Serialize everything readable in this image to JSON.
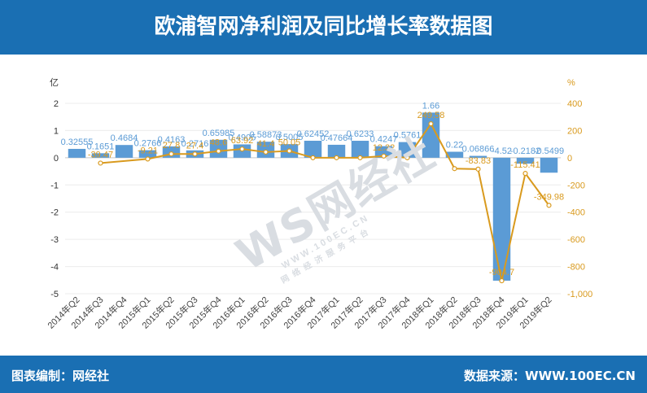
{
  "header": {
    "title": "欧浦智网净利润及同比增长率数据图"
  },
  "footer": {
    "left_text": "图表编制：网经社",
    "right_text": "数据来源：WWW.100EC.CN"
  },
  "watermark": {
    "logo_text": "WS网经社",
    "url_text": "WWW.100EC.CN",
    "tagline": "网络经济服务平台"
  },
  "colors": {
    "header_bg": "#1a6fb3",
    "bar": "#5b9bd5",
    "line": "#d99a1e",
    "left_axis_text": "#333333",
    "right_axis_text": "#d99a1e"
  },
  "chart_data": {
    "type": "bar+line",
    "left_axis": {
      "unit": "亿",
      "ticks": [
        "2",
        "1",
        "0",
        "-1",
        "-2",
        "-3",
        "-4",
        "-5"
      ],
      "range": [
        -5,
        2
      ]
    },
    "right_axis": {
      "unit": "%",
      "ticks": [
        "400",
        "200",
        "0",
        "-200",
        "-400",
        "-600",
        "-800",
        "-1,000"
      ],
      "range": [
        -1000,
        400
      ]
    },
    "categories": [
      "2014年Q2",
      "2014年Q3",
      "2014年Q4",
      "2015年Q1",
      "2015年Q2",
      "2015年Q3",
      "2015年Q4",
      "2016年Q1",
      "2016年Q2",
      "2016年Q3",
      "2016年Q4",
      "2017年Q1",
      "2017年Q2",
      "2017年Q3",
      "2017年Q4",
      "2018年Q1",
      "2018年Q2",
      "2018年Q3",
      "2018年Q4",
      "2019年Q1",
      "2019年Q2"
    ],
    "bars": {
      "values": [
        0.32555,
        0.1651,
        0.4684,
        0.2766,
        0.4163,
        0.2716,
        0.65985,
        0.4905,
        0.58873,
        0.5005,
        0.62452,
        0.47664,
        0.6233,
        0.4247,
        0.5761,
        1.66,
        0.22,
        0.06866,
        -4.52,
        -0.2182,
        -0.5499
      ],
      "labels": [
        "0.32555",
        "0.1651",
        "0.4684",
        "0.2766",
        "0.4163",
        "0.2716",
        "0.65985",
        "0.4905",
        "0.58873",
        "0.5005",
        "0.62452",
        "0.47664",
        "0.6233",
        "0.4247",
        "0.5761",
        "1.66",
        "0.22",
        "0.06866",
        "-4.52",
        "-0.2182",
        "-0.5499"
      ]
    },
    "line": {
      "values": [
        null,
        -39.47,
        null,
        -9.21,
        27.8,
        27.4,
        48.6,
        63.92,
        41.4,
        50.05,
        0,
        0,
        0,
        12.32,
        0,
        249.58,
        -80,
        -83.83,
        -904.7,
        -115.41,
        -349.98
      ],
      "labels": [
        "",
        "-39.47",
        "",
        "-9.21",
        "27.8",
        "27.4",
        "48.6",
        "63.92",
        "41.4",
        "50.05",
        "",
        "",
        "",
        "12.32",
        "",
        "249.58",
        "",
        "-83.83",
        "-904.7",
        "-115.41",
        "-349.98"
      ]
    }
  }
}
